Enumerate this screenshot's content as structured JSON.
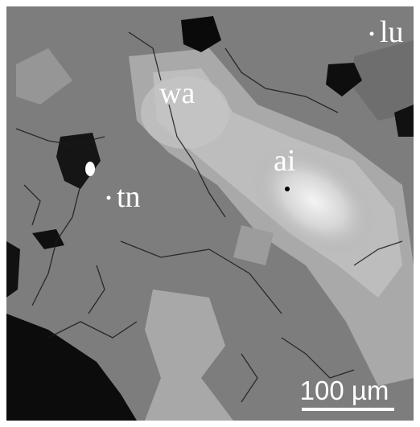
{
  "image": {
    "labels": [
      {
        "text": "wa"
      },
      {
        "text": "ai"
      },
      {
        "text": "tn"
      },
      {
        "text": "lu"
      }
    ],
    "scale_bar": {
      "label": "100 µm"
    }
  }
}
